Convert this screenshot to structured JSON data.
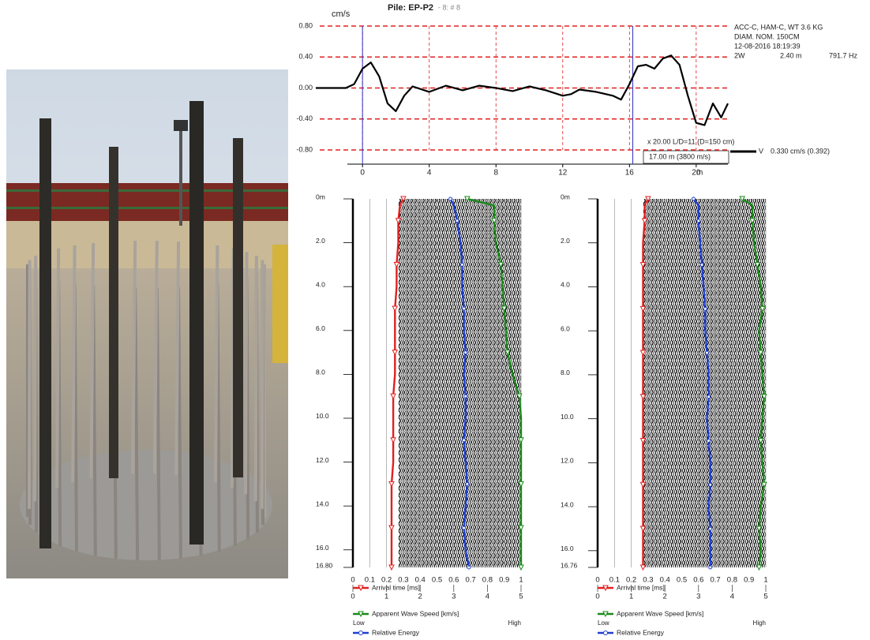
{
  "chart_data": [
    {
      "type": "line",
      "title": "Pile: EP-P2",
      "subtitle": "- 8: # 8",
      "y_label": "cm/s",
      "x_label": "m",
      "xlim": [
        -2.8,
        21.9
      ],
      "xticks": [
        0,
        4,
        8,
        12,
        16,
        20
      ],
      "ylim": [
        -0.8,
        0.8
      ],
      "yticks": [
        {
          "value": 0.8,
          "label": "0.80"
        },
        {
          "value": 0.4,
          "label": "0.40"
        },
        {
          "value": 0,
          "label": "0.00"
        },
        {
          "value": -0.4,
          "label": "-0.40"
        },
        {
          "value": -0.8,
          "label": "-0.80"
        }
      ],
      "grid": true,
      "grid_color": "#e02020",
      "markers": [
        0,
        16.2
      ],
      "marker_color": "#3030c0",
      "x": [
        -2.8,
        -1,
        -0.5,
        0,
        0.5,
        1,
        1.5,
        2,
        2.5,
        3,
        4,
        5,
        6,
        7,
        8,
        9,
        10,
        11,
        12,
        12.5,
        13,
        14,
        15,
        15.5,
        16,
        16.5,
        17,
        17.5,
        18,
        18.5,
        19,
        19.5,
        20,
        20.5,
        21,
        21.5,
        21.9
      ],
      "series": [
        {
          "name": "V",
          "color": "#000000",
          "values": [
            0,
            0,
            0.05,
            0.25,
            0.33,
            0.15,
            -0.2,
            -0.3,
            -0.1,
            0.02,
            -0.05,
            0.03,
            -0.03,
            0.03,
            0,
            -0.04,
            0.02,
            -0.03,
            -0.1,
            -0.08,
            -0.02,
            -0.05,
            -0.1,
            -0.15,
            0.05,
            0.28,
            0.3,
            0.25,
            0.38,
            0.42,
            0.3,
            -0.1,
            -0.45,
            -0.48,
            -0.2,
            -0.38,
            -0.2
          ]
        }
      ],
      "annotations": [
        "ACC-C, HAM-C, WT 3.6 KG",
        "DIAM. NOM. 150CM",
        "12-08-2016 18:19:39",
        "2W",
        "2.40 m",
        "791.7 Hz",
        "x 20.00  L/D=11 (D=150 cm)",
        "17.00 m (3800 m/s)",
        "0.330 cm/s  (0.392)"
      ]
    },
    {
      "type": "profile",
      "ylim": [
        0,
        16.8
      ],
      "yticks": [
        {
          "value": 0,
          "label": "0m"
        },
        {
          "value": 2,
          "label": "2.0"
        },
        {
          "value": 4,
          "label": "4.0"
        },
        {
          "value": 6,
          "label": "6.0"
        },
        {
          "value": 8,
          "label": "8.0"
        },
        {
          "value": 10,
          "label": "10.0"
        },
        {
          "value": 12,
          "label": "12.0"
        },
        {
          "value": 14,
          "label": "14.0"
        },
        {
          "value": 16,
          "label": "16.0"
        },
        {
          "value": 16.8,
          "label": "16.80"
        }
      ],
      "xlim": [
        0,
        1
      ],
      "xticks": [
        0,
        0.1,
        0.2,
        0.3,
        0.4,
        0.5,
        0.6,
        0.7,
        0.8,
        0.9,
        1
      ],
      "x2lim": [
        0,
        5
      ],
      "x2ticks": [
        0,
        1,
        2,
        3,
        4,
        5
      ],
      "x3lim": [
        0,
        1
      ],
      "x3ticks": [
        {
          "value": 0,
          "label": "Low"
        },
        {
          "value": 1,
          "label": "High"
        }
      ],
      "y": [
        0,
        0.3,
        1,
        2,
        3,
        4,
        5,
        6,
        7,
        8,
        9,
        10,
        11,
        12,
        13,
        14,
        15,
        16,
        16.8
      ],
      "series": [
        {
          "name": "Arrival time [ms]",
          "color": "#e02020",
          "axis": "x",
          "marker": "triangle",
          "values": [
            0.3,
            0.28,
            0.27,
            0.27,
            0.26,
            0.26,
            0.25,
            0.25,
            0.25,
            0.25,
            0.24,
            0.24,
            0.24,
            0.24,
            0.23,
            0.23,
            0.23,
            0.23,
            0.23
          ]
        },
        {
          "name": "Apparent Wave Speed [km/s]",
          "color": "#1a8a1a",
          "axis": "x2",
          "marker": "triangle",
          "values": [
            3.4,
            4.2,
            4.2,
            4.25,
            4.4,
            4.45,
            4.5,
            4.55,
            4.6,
            4.75,
            4.95,
            5,
            5,
            5,
            5,
            5,
            5,
            5,
            5
          ]
        },
        {
          "name": "Relative Energy",
          "color": "#1f3fd0",
          "axis": "x3",
          "marker": "circle",
          "values": [
            0.58,
            0.6,
            0.62,
            0.64,
            0.65,
            0.65,
            0.66,
            0.66,
            0.67,
            0.66,
            0.67,
            0.67,
            0.66,
            0.67,
            0.68,
            0.67,
            0.66,
            0.67,
            0.69
          ]
        }
      ]
    },
    {
      "type": "profile",
      "ylim": [
        0,
        16.76
      ],
      "yticks": [
        {
          "value": 0,
          "label": "0m"
        },
        {
          "value": 2,
          "label": "2.0"
        },
        {
          "value": 4,
          "label": "4.0"
        },
        {
          "value": 6,
          "label": "6.0"
        },
        {
          "value": 8,
          "label": "8.0"
        },
        {
          "value": 10,
          "label": "10.0"
        },
        {
          "value": 12,
          "label": "12.0"
        },
        {
          "value": 14,
          "label": "14.0"
        },
        {
          "value": 16,
          "label": "16.0"
        },
        {
          "value": 16.76,
          "label": "16.76"
        }
      ],
      "xlim": [
        0,
        1
      ],
      "xticks": [
        0,
        0.1,
        0.2,
        0.3,
        0.4,
        0.5,
        0.6,
        0.7,
        0.8,
        0.9,
        1
      ],
      "x2lim": [
        0,
        5
      ],
      "x2ticks": [
        0,
        1,
        2,
        3,
        4,
        5
      ],
      "x3lim": [
        0,
        1
      ],
      "x3ticks": [
        {
          "value": 0,
          "label": "Low"
        },
        {
          "value": 1,
          "label": "High"
        }
      ],
      "y": [
        0,
        0.3,
        1,
        2,
        3,
        4,
        5,
        6,
        7,
        8,
        9,
        10,
        11,
        12,
        13,
        14,
        15,
        16,
        16.76
      ],
      "series": [
        {
          "name": "Arrival time [ms]",
          "color": "#e02020",
          "axis": "x",
          "marker": "triangle",
          "values": [
            0.3,
            0.28,
            0.28,
            0.27,
            0.27,
            0.27,
            0.27,
            0.27,
            0.27,
            0.27,
            0.27,
            0.27,
            0.27,
            0.27,
            0.27,
            0.27,
            0.27,
            0.27,
            0.27
          ]
        },
        {
          "name": "Apparent Wave Speed [km/s]",
          "color": "#1a8a1a",
          "axis": "x2",
          "marker": "triangle",
          "values": [
            4.3,
            4.6,
            4.6,
            4.65,
            4.75,
            4.85,
            4.9,
            4.8,
            4.85,
            4.9,
            4.95,
            4.9,
            4.85,
            4.9,
            4.95,
            4.85,
            4.8,
            4.85,
            4.8
          ]
        },
        {
          "name": "Relative Energy",
          "color": "#1f3fd0",
          "axis": "x3",
          "marker": "circle",
          "values": [
            0.57,
            0.6,
            0.6,
            0.61,
            0.62,
            0.63,
            0.64,
            0.64,
            0.65,
            0.66,
            0.66,
            0.65,
            0.66,
            0.67,
            0.67,
            0.66,
            0.67,
            0.67,
            0.67
          ]
        }
      ]
    }
  ]
}
